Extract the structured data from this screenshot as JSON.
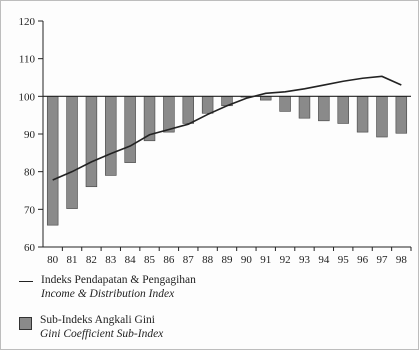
{
  "chart_data": {
    "type": "bar",
    "categories": [
      "80",
      "81",
      "82",
      "83",
      "84",
      "85",
      "86",
      "87",
      "88",
      "89",
      "90",
      "91",
      "92",
      "93",
      "94",
      "95",
      "96",
      "97",
      "98"
    ],
    "baseline": 100,
    "ylim": [
      60,
      120
    ],
    "yticks": [
      60,
      70,
      80,
      90,
      100,
      110,
      120
    ],
    "series": [
      {
        "name": "Sub-Indeks Angkali Gini",
        "name_en": "Gini Coefficient Sub-Index",
        "kind": "bar",
        "color": "#8a8a8a",
        "values": [
          65.8,
          70.2,
          76.0,
          79.0,
          82.4,
          88.2,
          90.5,
          92.8,
          95.5,
          97.5,
          100.0,
          99.0,
          96.0,
          94.2,
          93.5,
          92.8,
          90.5,
          89.2,
          90.2
        ]
      },
      {
        "name": "Indeks Pendapatan & Pengagihan",
        "name_en": "Income & Distribution Index",
        "kind": "line",
        "color": "#222222",
        "values": [
          77.8,
          80.0,
          82.6,
          84.8,
          86.8,
          89.8,
          91.2,
          92.6,
          95.2,
          97.5,
          99.5,
          100.8,
          101.2,
          102.0,
          103.0,
          104.0,
          104.8,
          105.3,
          103.0
        ]
      }
    ],
    "grid": false,
    "legend_position": "bottom"
  },
  "legend": {
    "line_label": "Indeks Pendapatan & Pengagihan",
    "line_label_en": "Income & Distribution Index",
    "bar_label": "Sub-Indeks Angkali Gini",
    "bar_label_en": "Gini Coefficient Sub-Index"
  }
}
